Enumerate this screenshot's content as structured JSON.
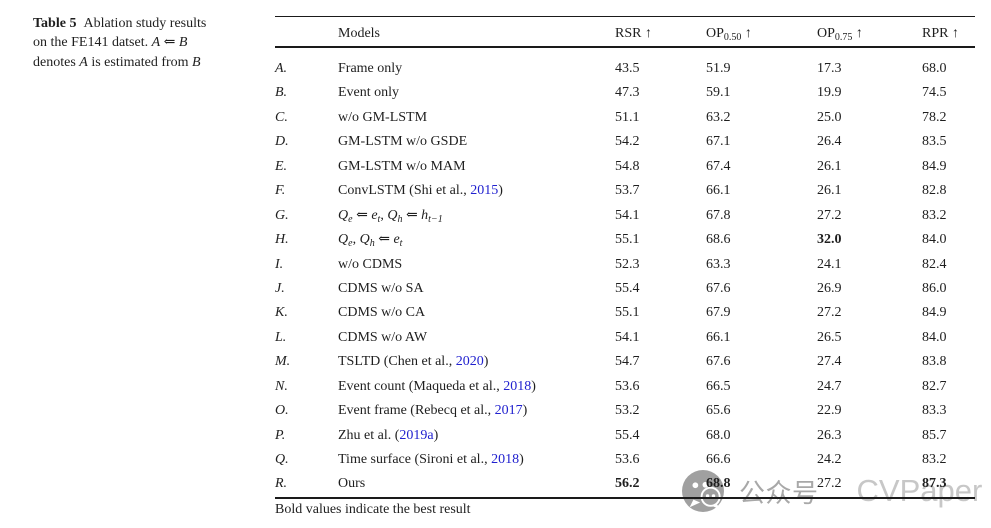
{
  "caption": {
    "lines": [
      [
        {
          "t": "Table 5",
          "s": "bold"
        },
        {
          "t": " Ablation study results",
          "s": "plain"
        }
      ],
      [
        {
          "t": "on the FE141 datset. ",
          "s": "plain"
        },
        {
          "t": "A",
          "s": "italic"
        },
        {
          "t": " ⇐ ",
          "s": "plain"
        },
        {
          "t": "B",
          "s": "italic"
        }
      ],
      [
        {
          "t": "denotes ",
          "s": "plain"
        },
        {
          "t": "A",
          "s": "italic"
        },
        {
          "t": " is estimated from ",
          "s": "plain"
        },
        {
          "t": "B",
          "s": "italic"
        }
      ]
    ]
  },
  "table": {
    "headers": {
      "models": [
        {
          "t": "Models",
          "s": "plain"
        }
      ],
      "rsr": [
        {
          "t": "RSR ↑",
          "s": "plain"
        }
      ],
      "op50": [
        {
          "t": "OP",
          "s": "plain"
        },
        {
          "t": "0.50",
          "s": "sub"
        },
        {
          "t": " ↑",
          "s": "plain"
        }
      ],
      "op75": [
        {
          "t": "OP",
          "s": "plain"
        },
        {
          "t": "0.75",
          "s": "sub"
        },
        {
          "t": " ↑",
          "s": "plain"
        }
      ],
      "rpr": [
        {
          "t": "RPR ↑",
          "s": "plain"
        }
      ]
    },
    "rows": [
      {
        "letter": "A.",
        "model": [
          {
            "t": "Frame only",
            "s": "plain"
          }
        ],
        "values": [
          "43.5",
          "51.9",
          "17.3",
          "68.0"
        ],
        "bold": [
          false,
          false,
          false,
          false
        ]
      },
      {
        "letter": "B.",
        "model": [
          {
            "t": "Event only",
            "s": "plain"
          }
        ],
        "values": [
          "47.3",
          "59.1",
          "19.9",
          "74.5"
        ],
        "bold": [
          false,
          false,
          false,
          false
        ]
      },
      {
        "letter": "C.",
        "model": [
          {
            "t": "w/o GM-LSTM",
            "s": "plain"
          }
        ],
        "values": [
          "51.1",
          "63.2",
          "25.0",
          "78.2"
        ],
        "bold": [
          false,
          false,
          false,
          false
        ]
      },
      {
        "letter": "D.",
        "model": [
          {
            "t": "GM-LSTM w/o GSDE",
            "s": "plain"
          }
        ],
        "values": [
          "54.2",
          "67.1",
          "26.4",
          "83.5"
        ],
        "bold": [
          false,
          false,
          false,
          false
        ]
      },
      {
        "letter": "E.",
        "model": [
          {
            "t": "GM-LSTM w/o MAM",
            "s": "plain"
          }
        ],
        "values": [
          "54.8",
          "67.4",
          "26.1",
          "84.9"
        ],
        "bold": [
          false,
          false,
          false,
          false
        ]
      },
      {
        "letter": "F.",
        "model": [
          {
            "t": "ConvLSTM (Shi et al., ",
            "s": "plain"
          },
          {
            "t": "2015",
            "s": "link"
          },
          {
            "t": ")",
            "s": "plain"
          }
        ],
        "values": [
          "53.7",
          "66.1",
          "26.1",
          "82.8"
        ],
        "bold": [
          false,
          false,
          false,
          false
        ]
      },
      {
        "letter": "G.",
        "model": [
          {
            "t": "Q",
            "s": "mathit"
          },
          {
            "t": "e",
            "s": "subi"
          },
          {
            "t": " ⇐ ",
            "s": "plain"
          },
          {
            "t": "e",
            "s": "mathit"
          },
          {
            "t": "t",
            "s": "subi"
          },
          {
            "t": ", ",
            "s": "plain"
          },
          {
            "t": "Q",
            "s": "mathit"
          },
          {
            "t": "h",
            "s": "subi"
          },
          {
            "t": " ⇐ ",
            "s": "plain"
          },
          {
            "t": "h",
            "s": "mathit"
          },
          {
            "t": "t−1",
            "s": "subi"
          }
        ],
        "values": [
          "54.1",
          "67.8",
          "27.2",
          "83.2"
        ],
        "bold": [
          false,
          false,
          false,
          false
        ]
      },
      {
        "letter": "H.",
        "model": [
          {
            "t": "Q",
            "s": "mathit"
          },
          {
            "t": "e",
            "s": "subi"
          },
          {
            "t": ", ",
            "s": "plain"
          },
          {
            "t": "Q",
            "s": "mathit"
          },
          {
            "t": "h",
            "s": "subi"
          },
          {
            "t": " ⇐ ",
            "s": "plain"
          },
          {
            "t": "e",
            "s": "mathit"
          },
          {
            "t": "t",
            "s": "subi"
          }
        ],
        "values": [
          "55.1",
          "68.6",
          "32.0",
          "84.0"
        ],
        "bold": [
          false,
          false,
          true,
          false
        ]
      },
      {
        "letter": "I.",
        "model": [
          {
            "t": "w/o CDMS",
            "s": "plain"
          }
        ],
        "values": [
          "52.3",
          "63.3",
          "24.1",
          "82.4"
        ],
        "bold": [
          false,
          false,
          false,
          false
        ]
      },
      {
        "letter": "J.",
        "model": [
          {
            "t": "CDMS w/o SA",
            "s": "plain"
          }
        ],
        "values": [
          "55.4",
          "67.6",
          "26.9",
          "86.0"
        ],
        "bold": [
          false,
          false,
          false,
          false
        ]
      },
      {
        "letter": "K.",
        "model": [
          {
            "t": "CDMS w/o CA",
            "s": "plain"
          }
        ],
        "values": [
          "55.1",
          "67.9",
          "27.2",
          "84.9"
        ],
        "bold": [
          false,
          false,
          false,
          false
        ]
      },
      {
        "letter": "L.",
        "model": [
          {
            "t": "CDMS w/o AW",
            "s": "plain"
          }
        ],
        "values": [
          "54.1",
          "66.1",
          "26.5",
          "84.0"
        ],
        "bold": [
          false,
          false,
          false,
          false
        ]
      },
      {
        "letter": "M.",
        "model": [
          {
            "t": "TSLTD (Chen et al., ",
            "s": "plain"
          },
          {
            "t": "2020",
            "s": "link"
          },
          {
            "t": ")",
            "s": "plain"
          }
        ],
        "values": [
          "54.7",
          "67.6",
          "27.4",
          "83.8"
        ],
        "bold": [
          false,
          false,
          false,
          false
        ]
      },
      {
        "letter": "N.",
        "model": [
          {
            "t": "Event count (Maqueda et al., ",
            "s": "plain"
          },
          {
            "t": "2018",
            "s": "link"
          },
          {
            "t": ")",
            "s": "plain"
          }
        ],
        "values": [
          "53.6",
          "66.5",
          "24.7",
          "82.7"
        ],
        "bold": [
          false,
          false,
          false,
          false
        ]
      },
      {
        "letter": "O.",
        "model": [
          {
            "t": "Event frame (Rebecq et al., ",
            "s": "plain"
          },
          {
            "t": "2017",
            "s": "link"
          },
          {
            "t": ")",
            "s": "plain"
          }
        ],
        "values": [
          "53.2",
          "65.6",
          "22.9",
          "83.3"
        ],
        "bold": [
          false,
          false,
          false,
          false
        ]
      },
      {
        "letter": "P.",
        "model": [
          {
            "t": "Zhu et al. (",
            "s": "plain"
          },
          {
            "t": "2019a",
            "s": "link"
          },
          {
            "t": ")",
            "s": "plain"
          }
        ],
        "values": [
          "55.4",
          "68.0",
          "26.3",
          "85.7"
        ],
        "bold": [
          false,
          false,
          false,
          false
        ]
      },
      {
        "letter": "Q.",
        "model": [
          {
            "t": "Time surface (Sironi et al., ",
            "s": "plain"
          },
          {
            "t": "2018",
            "s": "link"
          },
          {
            "t": ")",
            "s": "plain"
          }
        ],
        "values": [
          "53.6",
          "66.6",
          "24.2",
          "83.2"
        ],
        "bold": [
          false,
          false,
          false,
          false
        ]
      },
      {
        "letter": "R.",
        "model": [
          {
            "t": "Ours",
            "s": "plain"
          }
        ],
        "values": [
          "56.2",
          "68.8",
          "27.2",
          "87.3"
        ],
        "bold": [
          true,
          true,
          false,
          true
        ]
      }
    ],
    "footnote": "Bold values indicate the best result"
  },
  "watermark": {
    "icon": "wechat-icon",
    "cn": "公众号",
    "en": "CVPaper"
  },
  "colors": {
    "text": "#1e1e1e",
    "rule": "#1a1a1a",
    "link_blue": "#2121cf",
    "watermark_gray": "#a0a0a0",
    "watermark_light": "#c7c7c7"
  }
}
